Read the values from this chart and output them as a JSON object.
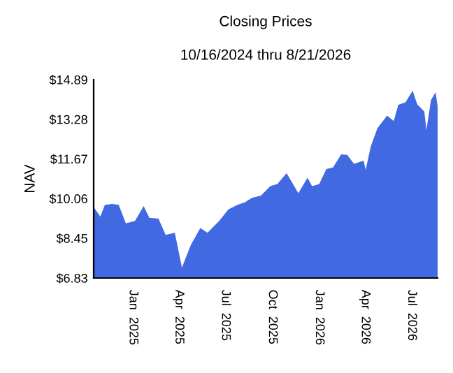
{
  "chart_data": {
    "type": "area",
    "title": "Closing Prices",
    "subtitle": "10/16/2024 thru 8/21/2026",
    "ylabel": "NAV",
    "x": [
      "2024-10-16",
      "2024-10-29",
      "2024-11-07",
      "2024-11-21",
      "2024-12-04",
      "2024-12-18",
      "2025-01-05",
      "2025-01-22",
      "2025-02-02",
      "2025-02-20",
      "2025-03-06",
      "2025-03-24",
      "2025-04-07",
      "2025-04-14",
      "2025-04-25",
      "2025-05-13",
      "2025-05-27",
      "2025-06-19",
      "2025-07-07",
      "2025-07-25",
      "2025-08-08",
      "2025-08-22",
      "2025-09-09",
      "2025-09-27",
      "2025-10-11",
      "2025-10-29",
      "2025-11-21",
      "2025-12-09",
      "2025-12-18",
      "2026-01-01",
      "2026-01-15",
      "2026-01-28",
      "2026-02-13",
      "2026-02-25",
      "2026-03-10",
      "2026-03-29",
      "2026-04-02",
      "2026-04-12",
      "2026-04-25",
      "2026-05-14",
      "2026-05-27",
      "2026-06-05",
      "2026-06-19",
      "2026-07-03",
      "2026-07-12",
      "2026-07-26",
      "2026-07-30",
      "2026-08-08",
      "2026-08-17",
      "2026-08-21"
    ],
    "series": [
      {
        "color": "#4169e1",
        "values": [
          9.71,
          9.33,
          9.8,
          9.84,
          9.8,
          9.05,
          9.15,
          9.75,
          9.28,
          9.24,
          8.58,
          8.67,
          7.25,
          7.63,
          8.2,
          8.86,
          8.67,
          9.15,
          9.62,
          9.8,
          9.9,
          10.09,
          10.18,
          10.56,
          10.65,
          11.09,
          10.28,
          10.9,
          10.56,
          10.65,
          11.26,
          11.32,
          11.85,
          11.83,
          11.47,
          11.6,
          11.22,
          12.17,
          12.92,
          13.43,
          13.21,
          13.87,
          13.97,
          14.44,
          13.89,
          13.59,
          12.83,
          14.06,
          14.38,
          13.81
        ]
      }
    ],
    "xlim": [
      "2024-10-16",
      "2026-08-21"
    ],
    "xticks": [
      {
        "value": "2025-01-01",
        "label": "Jan  2025"
      },
      {
        "value": "2025-04-01",
        "label": "Apr  2025"
      },
      {
        "value": "2025-07-01",
        "label": "Jul  2025"
      },
      {
        "value": "2025-10-01",
        "label": "Oct  2025"
      },
      {
        "value": "2026-01-01",
        "label": "Jan  2026"
      },
      {
        "value": "2026-04-01",
        "label": "Apr  2026"
      },
      {
        "value": "2026-07-01",
        "label": "Jul  2026"
      }
    ],
    "ylim": [
      6.83,
      14.89
    ],
    "yticks": [
      {
        "value": 6.83,
        "label": "$6.83"
      },
      {
        "value": 8.45,
        "label": "$8.45"
      },
      {
        "value": 10.06,
        "label": "$10.06"
      },
      {
        "value": 11.67,
        "label": "$11.67"
      },
      {
        "value": 13.28,
        "label": "$13.28"
      },
      {
        "value": 14.89,
        "label": "$14.89"
      }
    ],
    "grid": false,
    "legend": false
  }
}
